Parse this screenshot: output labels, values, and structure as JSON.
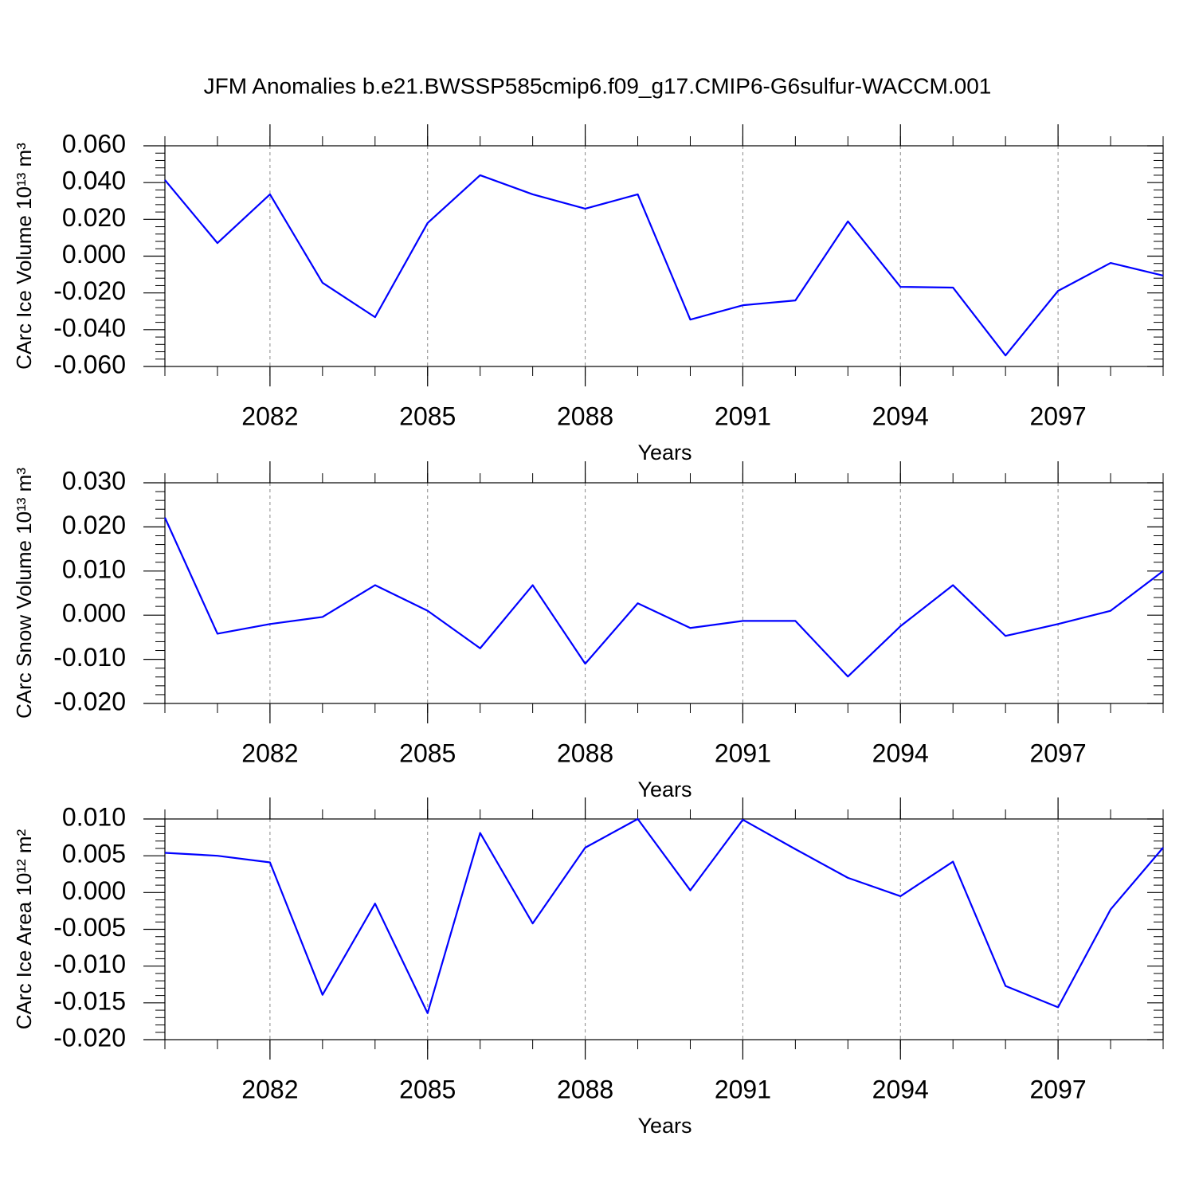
{
  "chart_data": [
    {
      "type": "line",
      "title": "JFM Anomalies b.e21.BWSSP585cmip6.f09_g17.CMIP6-G6sulfur-WACCM.001",
      "xlabel": "Years",
      "ylabel": "CArc Ice Volume 10¹³ m³",
      "x": [
        2080,
        2081,
        2082,
        2083,
        2084,
        2085,
        2086,
        2087,
        2088,
        2089,
        2090,
        2091,
        2092,
        2093,
        2094,
        2095,
        2096,
        2097,
        2098,
        2099
      ],
      "series": [
        {
          "color": "#0000ff",
          "values": [
            0.0414,
            0.0071,
            0.0336,
            -0.0145,
            -0.0332,
            0.018,
            0.044,
            0.0336,
            0.0258,
            0.0336,
            -0.0345,
            -0.0267,
            -0.0241,
            0.0189,
            -0.0167,
            -0.0171,
            -0.054,
            -0.0189,
            -0.0037,
            -0.0106
          ]
        }
      ],
      "xlim": [
        2080,
        2099
      ],
      "xticks": [
        2082,
        2085,
        2088,
        2091,
        2094,
        2097
      ],
      "xgrid": true,
      "ylim": [
        -0.06,
        0.06
      ],
      "yticks": [
        {
          "value": -0.06,
          "label": "-0.060"
        },
        {
          "value": -0.04,
          "label": "-0.040"
        },
        {
          "value": -0.02,
          "label": "-0.020"
        },
        {
          "value": 0,
          "label": "0.000"
        },
        {
          "value": 0.02,
          "label": "0.020"
        },
        {
          "value": 0.04,
          "label": "0.040"
        },
        {
          "value": 0.06,
          "label": "0.060"
        }
      ]
    },
    {
      "type": "line",
      "xlabel": "Years",
      "ylabel": "CArc Snow Volume 10¹³ m³",
      "x": [
        2080,
        2081,
        2082,
        2083,
        2084,
        2085,
        2086,
        2087,
        2088,
        2089,
        2090,
        2091,
        2092,
        2093,
        2094,
        2095,
        2096,
        2097,
        2098,
        2099
      ],
      "series": [
        {
          "color": "#0000ff",
          "values": [
            0.0221,
            -0.0042,
            -0.002,
            -0.0004,
            0.0068,
            0.001,
            -0.0075,
            0.0068,
            -0.011,
            0.0027,
            -0.0029,
            -0.0013,
            -0.0013,
            -0.0139,
            -0.0025,
            0.0068,
            -0.0047,
            -0.002,
            0.001,
            0.01
          ]
        }
      ],
      "xlim": [
        2080,
        2099
      ],
      "xticks": [
        2082,
        2085,
        2088,
        2091,
        2094,
        2097
      ],
      "xgrid": true,
      "ylim": [
        -0.02,
        0.03
      ],
      "yticks": [
        {
          "value": -0.02,
          "label": "-0.020"
        },
        {
          "value": -0.01,
          "label": "-0.010"
        },
        {
          "value": 0,
          "label": "0.000"
        },
        {
          "value": 0.01,
          "label": "0.010"
        },
        {
          "value": 0.02,
          "label": "0.020"
        },
        {
          "value": 0.03,
          "label": "0.030"
        }
      ]
    },
    {
      "type": "line",
      "xlabel": "Years",
      "ylabel": "CArc Ice Area 10¹² m²",
      "x": [
        2080,
        2081,
        2082,
        2083,
        2084,
        2085,
        2086,
        2087,
        2088,
        2089,
        2090,
        2091,
        2092,
        2093,
        2094,
        2095,
        2096,
        2097,
        2098,
        2099
      ],
      "series": [
        {
          "color": "#0000ff",
          "values": [
            0.0054,
            0.005,
            0.0041,
            -0.0139,
            -0.0015,
            -0.0164,
            0.0081,
            -0.0042,
            0.0061,
            0.01,
            0.0003,
            0.0099,
            0.0059,
            0.002,
            -0.0005,
            0.0042,
            -0.0127,
            -0.0156,
            -0.0023,
            0.0061
          ]
        }
      ],
      "xlim": [
        2080,
        2099
      ],
      "xticks": [
        2082,
        2085,
        2088,
        2091,
        2094,
        2097
      ],
      "xgrid": true,
      "ylim": [
        -0.02,
        0.01
      ],
      "yticks": [
        {
          "value": -0.02,
          "label": "-0.020"
        },
        {
          "value": -0.015,
          "label": "-0.015"
        },
        {
          "value": -0.01,
          "label": "-0.010"
        },
        {
          "value": -0.005,
          "label": "-0.005"
        },
        {
          "value": 0,
          "label": "0.000"
        },
        {
          "value": 0.005,
          "label": "0.005"
        },
        {
          "value": 0.01,
          "label": "0.010"
        }
      ]
    }
  ]
}
